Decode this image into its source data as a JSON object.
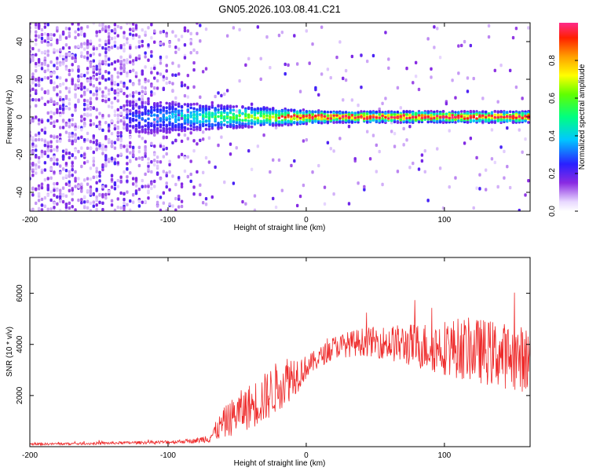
{
  "figure": {
    "title": "GN05.2026.103.08.41.C21"
  },
  "colors": {
    "snr_line": "#ee2a2a",
    "frame": "#000000"
  },
  "chart_data": [
    {
      "type": "heatmap",
      "name": "spectrogram",
      "xlabel": "Height of straight line (km)",
      "ylabel": "Frequency (Hz)",
      "xlim": [
        -200,
        162
      ],
      "ylim": [
        -50,
        50
      ],
      "xticks": [
        -200,
        -100,
        0,
        100
      ],
      "yticks": [
        -40,
        -20,
        0,
        20,
        40
      ],
      "tick_labels_x": [
        "-200",
        "-100",
        "0",
        "100"
      ],
      "tick_labels_y": [
        "-40",
        "-20",
        "0",
        "20",
        "40"
      ],
      "carrier_frequency_hz": 0,
      "carrier_onset_km": -130,
      "noise_cutoff_km": -72,
      "colorbar": {
        "label": "Normalized spectral amplitude",
        "range": [
          0,
          1
        ],
        "ticks": [
          "0.0",
          "0.2",
          "0.4",
          "0.6",
          "0.8"
        ],
        "colormap": "rainbow"
      }
    },
    {
      "type": "line",
      "name": "snr",
      "xlabel": "Height of straight line (km)",
      "ylabel": "SNR (10 * v/v)",
      "xlim": [
        -200,
        162
      ],
      "ylim": [
        0,
        7400
      ],
      "xticks": [
        -200,
        -100,
        0,
        100
      ],
      "yticks": [
        2000,
        4000,
        6000
      ],
      "tick_labels_x": [
        "-200",
        "-100",
        "0",
        "100"
      ],
      "tick_labels_y": [
        "2000",
        "4000",
        "6000"
      ],
      "x": [
        -200,
        -180,
        -160,
        -140,
        -120,
        -100,
        -80,
        -70,
        -60,
        -50,
        -40,
        -30,
        -20,
        -15,
        -10,
        -5,
        0,
        10,
        20,
        30,
        40,
        50,
        60,
        70,
        80,
        90,
        100,
        110,
        120,
        130,
        140,
        150,
        160
      ],
      "y": [
        100,
        110,
        120,
        140,
        160,
        180,
        230,
        350,
        900,
        1300,
        1600,
        1900,
        2400,
        2600,
        2800,
        2900,
        3100,
        3500,
        3900,
        4000,
        4100,
        4100,
        4050,
        4000,
        3950,
        3900,
        3900,
        3850,
        3800,
        3700,
        3600,
        3500,
        3400
      ],
      "spread": [
        40,
        45,
        50,
        55,
        60,
        70,
        90,
        200,
        600,
        800,
        900,
        1000,
        1000,
        1000,
        900,
        700,
        450,
        400,
        450,
        500,
        550,
        600,
        700,
        800,
        900,
        1000,
        1100,
        1200,
        1250,
        1300,
        1300,
        1300,
        1300
      ]
    }
  ]
}
